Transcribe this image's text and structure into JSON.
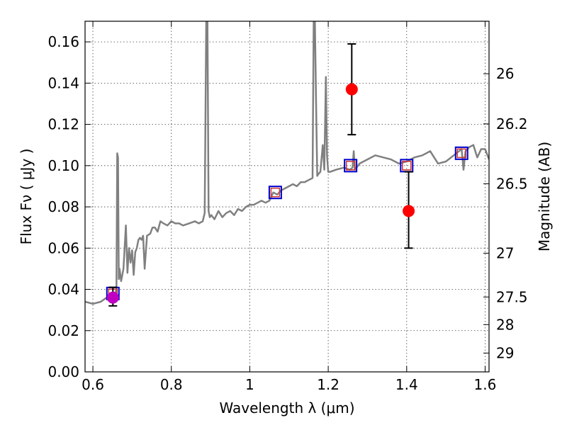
{
  "chart_data": {
    "type": "line",
    "title": "",
    "xlabel": "Wavelength  λ (μm)",
    "ylabel": "Flux  Fν  ( μJy )",
    "y2label": "Magnitude (AB)",
    "xlim": [
      0.58,
      1.61
    ],
    "ylim": [
      0.0,
      0.17
    ],
    "grid": true,
    "x_ticks": [
      0.6,
      0.8,
      1.0,
      1.2,
      1.4,
      1.6
    ],
    "x_tick_labels": [
      "0.6",
      "0.8",
      "1",
      "1.2",
      "1.4",
      "1.6"
    ],
    "y_ticks": [
      0.0,
      0.02,
      0.04,
      0.06,
      0.08,
      0.1,
      0.12,
      0.14,
      0.16
    ],
    "y_tick_labels": [
      "0.00",
      "0.02",
      "0.04",
      "0.06",
      "0.08",
      "0.10",
      "0.12",
      "0.14",
      "0.16"
    ],
    "y2_ticks": [
      26,
      26.2,
      26.5,
      27,
      27.5,
      28,
      29
    ],
    "y2_tick_labels": [
      "26",
      "26.2",
      "26.5",
      "27",
      "27.5",
      "28",
      "29"
    ],
    "colors": {
      "spectrum": "#808080",
      "observed": "#ff0000",
      "model_box": "#0000cc",
      "model_inner": "#cc3333",
      "magenta": "#c000c0",
      "errorbar": "#000000"
    },
    "series": [
      {
        "kind": "spectrum",
        "x": [
          0.58,
          0.6,
          0.62,
          0.635,
          0.645,
          0.655,
          0.66,
          0.662,
          0.664,
          0.666,
          0.668,
          0.672,
          0.678,
          0.684,
          0.688,
          0.692,
          0.696,
          0.7,
          0.704,
          0.708,
          0.712,
          0.716,
          0.72,
          0.724,
          0.728,
          0.732,
          0.738,
          0.746,
          0.752,
          0.758,
          0.765,
          0.772,
          0.78,
          0.79,
          0.8,
          0.81,
          0.82,
          0.83,
          0.845,
          0.86,
          0.87,
          0.88,
          0.885,
          0.889,
          0.892,
          0.895,
          0.898,
          0.902,
          0.91,
          0.92,
          0.93,
          0.94,
          0.95,
          0.96,
          0.97,
          0.98,
          0.99,
          1.0,
          1.01,
          1.02,
          1.03,
          1.04,
          1.05,
          1.06,
          1.07,
          1.08,
          1.09,
          1.1,
          1.11,
          1.12,
          1.13,
          1.14,
          1.15,
          1.16,
          1.163,
          1.166,
          1.169,
          1.172,
          1.175,
          1.18,
          1.186,
          1.19,
          1.194,
          1.197,
          1.2,
          1.205,
          1.22,
          1.24,
          1.255,
          1.262,
          1.265,
          1.268,
          1.272,
          1.28,
          1.3,
          1.32,
          1.34,
          1.36,
          1.38,
          1.4,
          1.42,
          1.44,
          1.46,
          1.47,
          1.48,
          1.5,
          1.52,
          1.54,
          1.545,
          1.55,
          1.56,
          1.57,
          1.58,
          1.59,
          1.6,
          1.61
        ],
        "y": [
          0.034,
          0.033,
          0.034,
          0.036,
          0.035,
          0.037,
          0.04,
          0.106,
          0.104,
          0.045,
          0.05,
          0.044,
          0.05,
          0.071,
          0.048,
          0.06,
          0.053,
          0.059,
          0.047,
          0.058,
          0.06,
          0.064,
          0.065,
          0.064,
          0.066,
          0.05,
          0.066,
          0.067,
          0.07,
          0.07,
          0.068,
          0.073,
          0.072,
          0.071,
          0.073,
          0.072,
          0.072,
          0.071,
          0.072,
          0.073,
          0.072,
          0.073,
          0.077,
          0.17,
          0.17,
          0.078,
          0.075,
          0.076,
          0.074,
          0.078,
          0.075,
          0.077,
          0.078,
          0.076,
          0.079,
          0.078,
          0.08,
          0.081,
          0.081,
          0.082,
          0.083,
          0.082,
          0.083,
          0.087,
          0.086,
          0.088,
          0.089,
          0.09,
          0.091,
          0.09,
          0.092,
          0.092,
          0.093,
          0.094,
          0.17,
          0.17,
          0.13,
          0.095,
          0.096,
          0.097,
          0.11,
          0.098,
          0.143,
          0.105,
          0.097,
          0.097,
          0.098,
          0.099,
          0.098,
          0.099,
          0.107,
          0.098,
          0.099,
          0.101,
          0.103,
          0.105,
          0.104,
          0.103,
          0.101,
          0.102,
          0.104,
          0.105,
          0.107,
          0.104,
          0.101,
          0.102,
          0.105,
          0.108,
          0.098,
          0.107,
          0.109,
          0.11,
          0.104,
          0.108,
          0.108,
          0.103
        ]
      },
      {
        "kind": "observed",
        "points": [
          {
            "x": 0.651,
            "y": 0.036,
            "yerr_low": 0.032,
            "yerr_high": 0.041,
            "color": "#c000c0"
          },
          {
            "x": 1.26,
            "y": 0.137,
            "yerr_low": 0.115,
            "yerr_high": 0.159,
            "color": "#ff0000"
          },
          {
            "x": 1.405,
            "y": 0.078,
            "yerr_low": 0.06,
            "yerr_high": 0.097,
            "color": "#ff0000"
          }
        ]
      },
      {
        "kind": "model_boxes",
        "points": [
          {
            "x": 0.651,
            "y": 0.038
          },
          {
            "x": 1.065,
            "y": 0.087
          },
          {
            "x": 1.257,
            "y": 0.1
          },
          {
            "x": 1.4,
            "y": 0.1
          },
          {
            "x": 1.54,
            "y": 0.106
          }
        ]
      }
    ]
  }
}
